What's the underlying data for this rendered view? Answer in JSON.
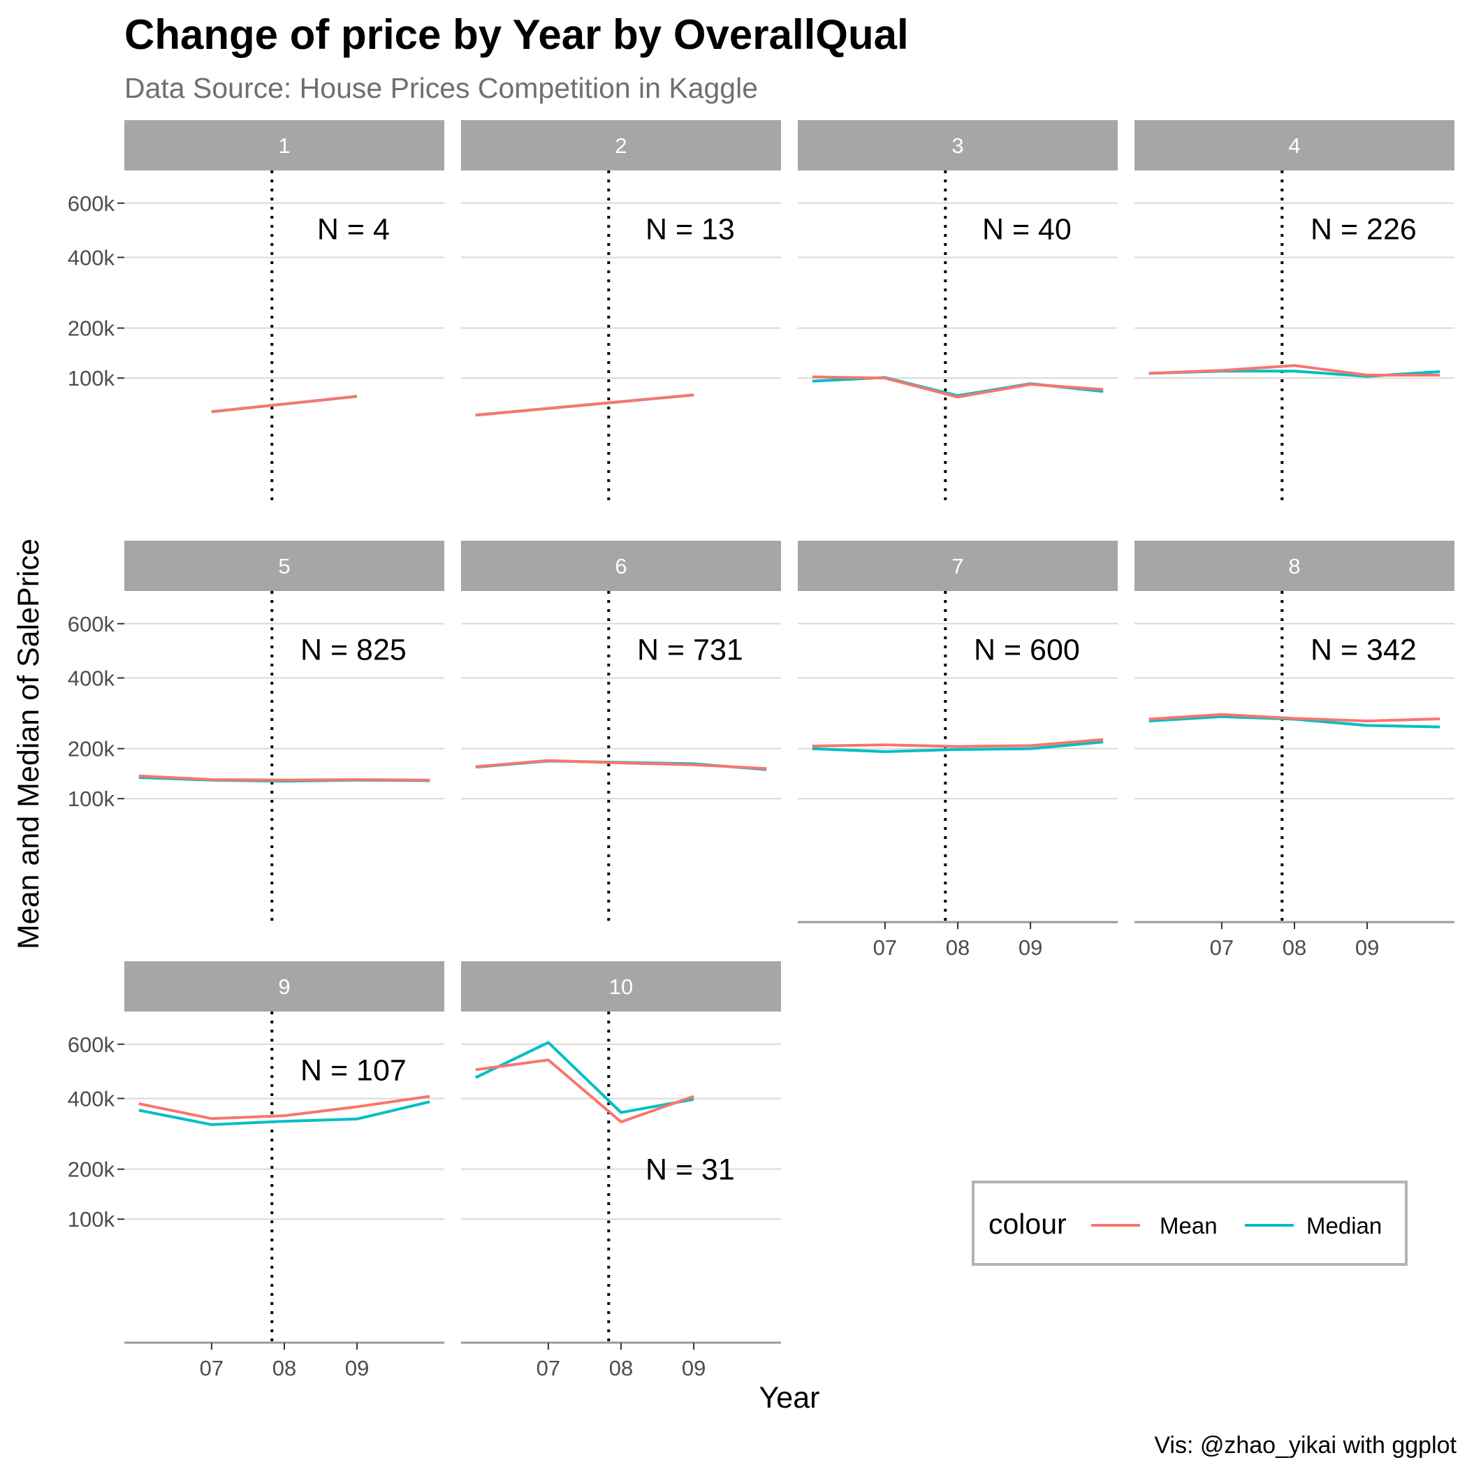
{
  "title": "Change of price by Year by OverallQual",
  "subtitle": "Data Source: House Prices Competition in Kaggle",
  "caption": "Vis: @zhao_yikai with ggplot",
  "colors": {
    "mean": "#F8766D",
    "median": "#00BFC4",
    "strip": "#a6a6a6",
    "grid": "#d9d9d9",
    "axis": "#999999"
  },
  "chart_data": {
    "type": "line",
    "facet_by": "OverallQual",
    "xlabel": "Year",
    "ylabel": "Mean and Median of SalePrice",
    "x_ticks": [
      2007,
      2008,
      2009
    ],
    "x_tick_labels": [
      "07",
      "08",
      "09"
    ],
    "xlim": [
      2005.8,
      2010.2
    ],
    "y_ticks": [
      100000,
      200000,
      400000,
      600000
    ],
    "y_tick_labels": [
      "100k",
      "200k",
      "400k",
      "600k"
    ],
    "y_scale": "sqrt",
    "ylim": [
      0,
      740000
    ],
    "vline_x": 2007.83,
    "vline_style": "dotted",
    "legend": {
      "title": "colour",
      "entries": [
        "Mean",
        "Median"
      ],
      "position": "bottom-right"
    },
    "facets": [
      {
        "label": "1",
        "n_label": "N =  4",
        "n_value": 4,
        "mean": {
          "x": [
            2007,
            2009
          ],
          "y": [
            52000,
            72000
          ]
        },
        "median": {
          "x": [
            2007,
            2009
          ],
          "y": [
            52000,
            72000
          ]
        }
      },
      {
        "label": "2",
        "n_label": "N =  13",
        "n_value": 13,
        "mean": {
          "x": [
            2006,
            2009
          ],
          "y": [
            48000,
            74000
          ]
        },
        "median": {
          "x": [
            2006,
            2009
          ],
          "y": [
            48000,
            74000
          ]
        }
      },
      {
        "label": "3",
        "n_label": "N =  40",
        "n_value": 40,
        "mean": {
          "x": [
            2006,
            2007,
            2008,
            2009,
            2010
          ],
          "y": [
            102000,
            100000,
            71000,
            90000,
            82000
          ]
        },
        "median": {
          "x": [
            2006,
            2007,
            2008,
            2009,
            2010
          ],
          "y": [
            95000,
            101000,
            73000,
            91000,
            79000
          ]
        }
      },
      {
        "label": "4",
        "n_label": "N =  226",
        "n_value": 226,
        "mean": {
          "x": [
            2006,
            2007,
            2008,
            2009,
            2010
          ],
          "y": [
            108000,
            113000,
            122000,
            105000,
            105000
          ]
        },
        "median": {
          "x": [
            2006,
            2007,
            2008,
            2009,
            2010
          ],
          "y": [
            108000,
            112000,
            112000,
            103000,
            111000
          ]
        }
      },
      {
        "label": "5",
        "n_label": "N =  825",
        "n_value": 825,
        "mean": {
          "x": [
            2006,
            2007,
            2008,
            2009,
            2010
          ],
          "y": [
            141000,
            134000,
            133000,
            134000,
            133000
          ]
        },
        "median": {
          "x": [
            2006,
            2007,
            2008,
            2009,
            2010
          ],
          "y": [
            138000,
            133000,
            131000,
            133000,
            132000
          ]
        }
      },
      {
        "label": "6",
        "n_label": "N =  731",
        "n_value": 731,
        "mean": {
          "x": [
            2006,
            2007,
            2008,
            2009,
            2010
          ],
          "y": [
            160000,
            173000,
            168000,
            164000,
            156000
          ]
        },
        "median": {
          "x": [
            2006,
            2007,
            2008,
            2009,
            2010
          ],
          "y": [
            159000,
            172000,
            169000,
            166000,
            154000
          ]
        }
      },
      {
        "label": "7",
        "n_label": "N =  600",
        "n_value": 600,
        "mean": {
          "x": [
            2006,
            2007,
            2008,
            2009,
            2010
          ],
          "y": [
            206000,
            209000,
            205000,
            207000,
            222000
          ]
        },
        "median": {
          "x": [
            2006,
            2007,
            2008,
            2009,
            2010
          ],
          "y": [
            200000,
            193000,
            198000,
            200000,
            216000
          ]
        }
      },
      {
        "label": "8",
        "n_label": "N =  342",
        "n_value": 342,
        "mean": {
          "x": [
            2006,
            2007,
            2008,
            2009,
            2010
          ],
          "y": [
            275000,
            288000,
            277000,
            270000,
            276000
          ]
        },
        "median": {
          "x": [
            2006,
            2007,
            2008,
            2009,
            2010
          ],
          "y": [
            270000,
            282000,
            275000,
            258000,
            254000
          ]
        }
      },
      {
        "label": "9",
        "n_label": "N =  107",
        "n_value": 107,
        "mean": {
          "x": [
            2006,
            2007,
            2008,
            2009,
            2010
          ],
          "y": [
            383000,
            336000,
            345000,
            373000,
            407000
          ]
        },
        "median": {
          "x": [
            2006,
            2007,
            2008,
            2009,
            2010
          ],
          "y": [
            362000,
            318000,
            328000,
            335000,
            389000
          ]
        }
      },
      {
        "label": "10",
        "n_label": "N =  31",
        "n_value": 31,
        "mean": {
          "x": [
            2006,
            2007,
            2008,
            2009
          ],
          "y": [
            501000,
            538000,
            326000,
            407000
          ]
        },
        "median": {
          "x": [
            2006,
            2007,
            2008,
            2009
          ],
          "y": [
            472000,
            607000,
            355000,
            397000
          ]
        }
      }
    ]
  }
}
